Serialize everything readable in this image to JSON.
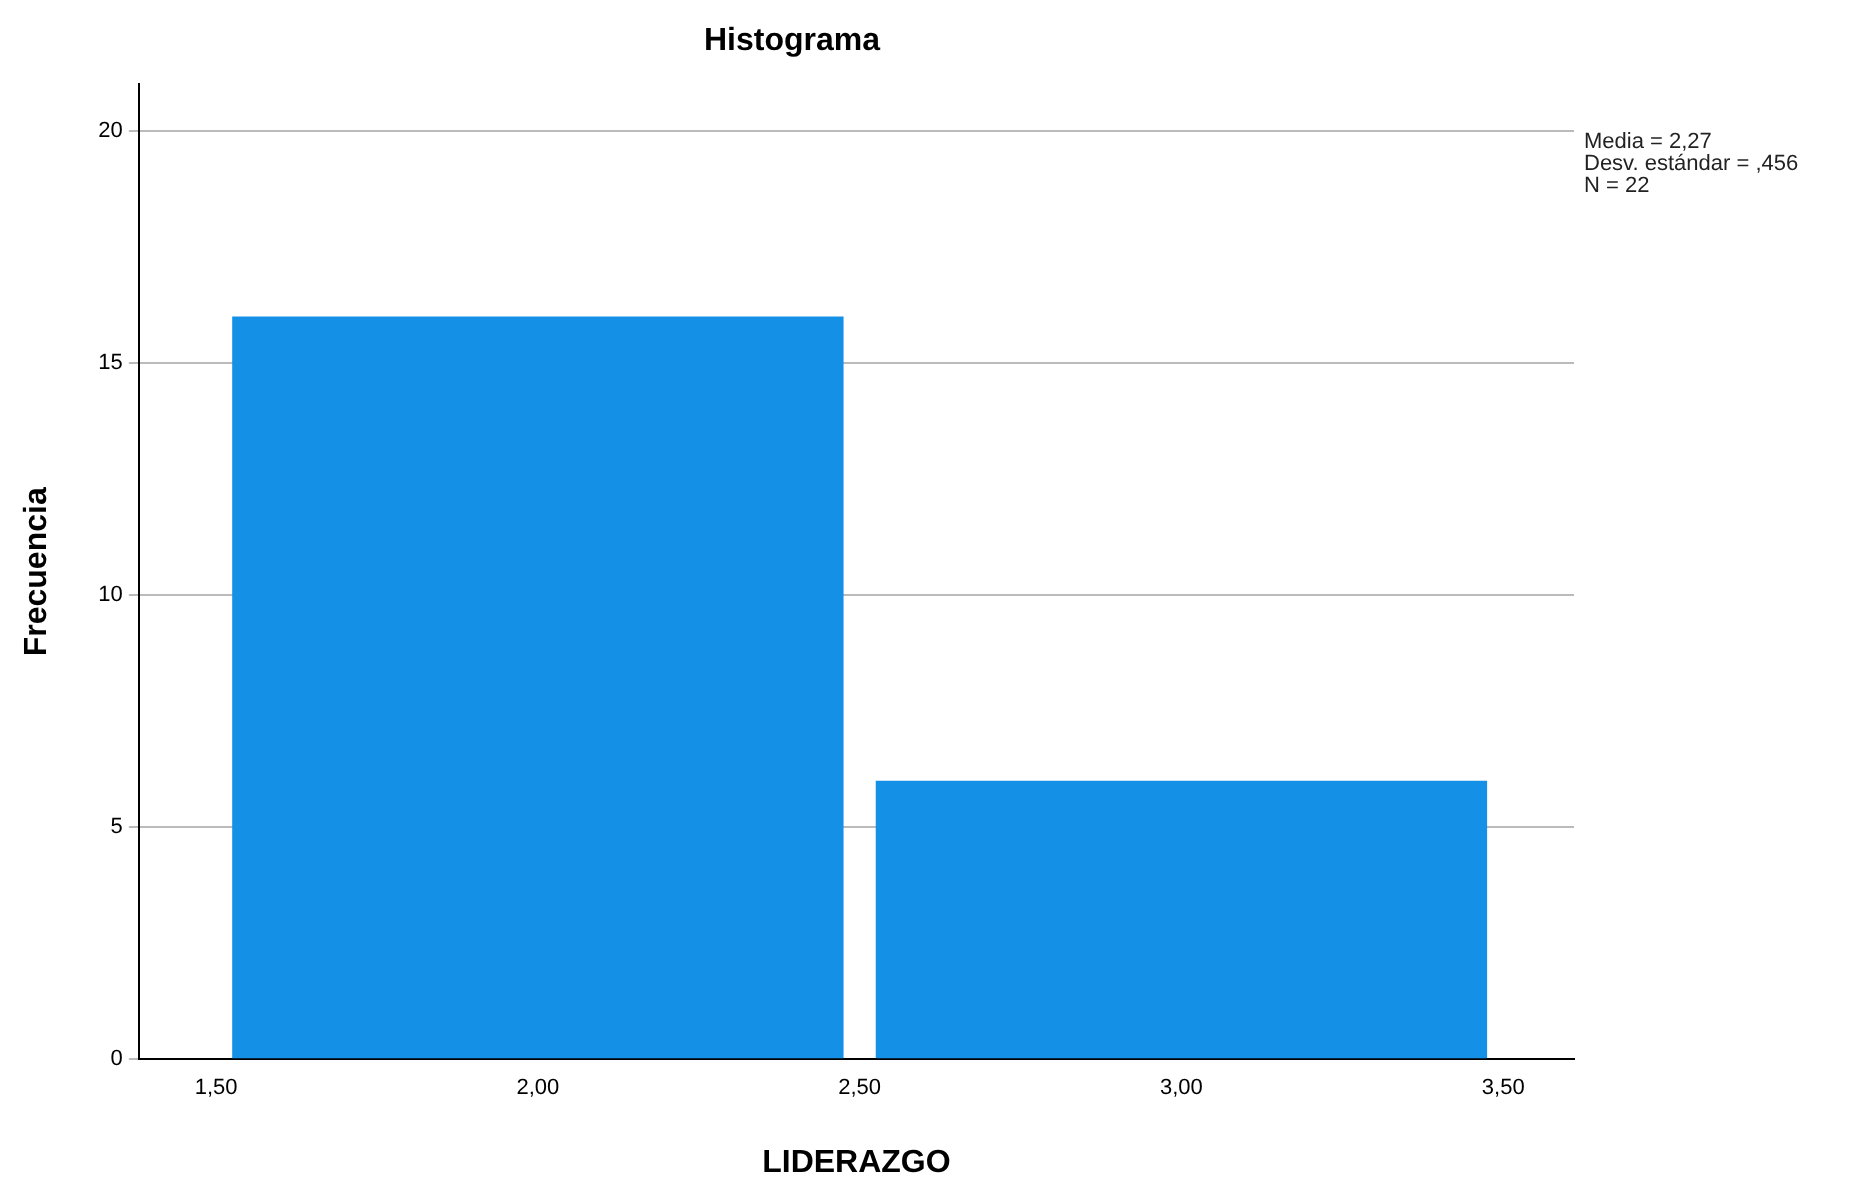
{
  "chart_data": {
    "type": "histogram",
    "title": "Histograma",
    "xlabel": "LIDERAZGO",
    "ylabel": "Frecuencia",
    "bins": [
      1.5,
      2.5,
      3.5
    ],
    "values": [
      16,
      6
    ],
    "color": "#1491e6",
    "xlim": [
      1.38,
      3.61
    ],
    "xticks": [
      {
        "value": 1.5,
        "label": "1,50"
      },
      {
        "value": 2,
        "label": "2,00"
      },
      {
        "value": 2.5,
        "label": "2,50"
      },
      {
        "value": 3,
        "label": "3,00"
      },
      {
        "value": 3.5,
        "label": "3,50"
      }
    ],
    "ylim": [
      0,
      21
    ],
    "yticks": [
      0,
      5,
      10,
      15,
      20
    ],
    "grid": "y",
    "legend": false,
    "annotations": [
      "Media = 2,27",
      "Desv. estándar = ,456",
      "N = 22"
    ]
  }
}
